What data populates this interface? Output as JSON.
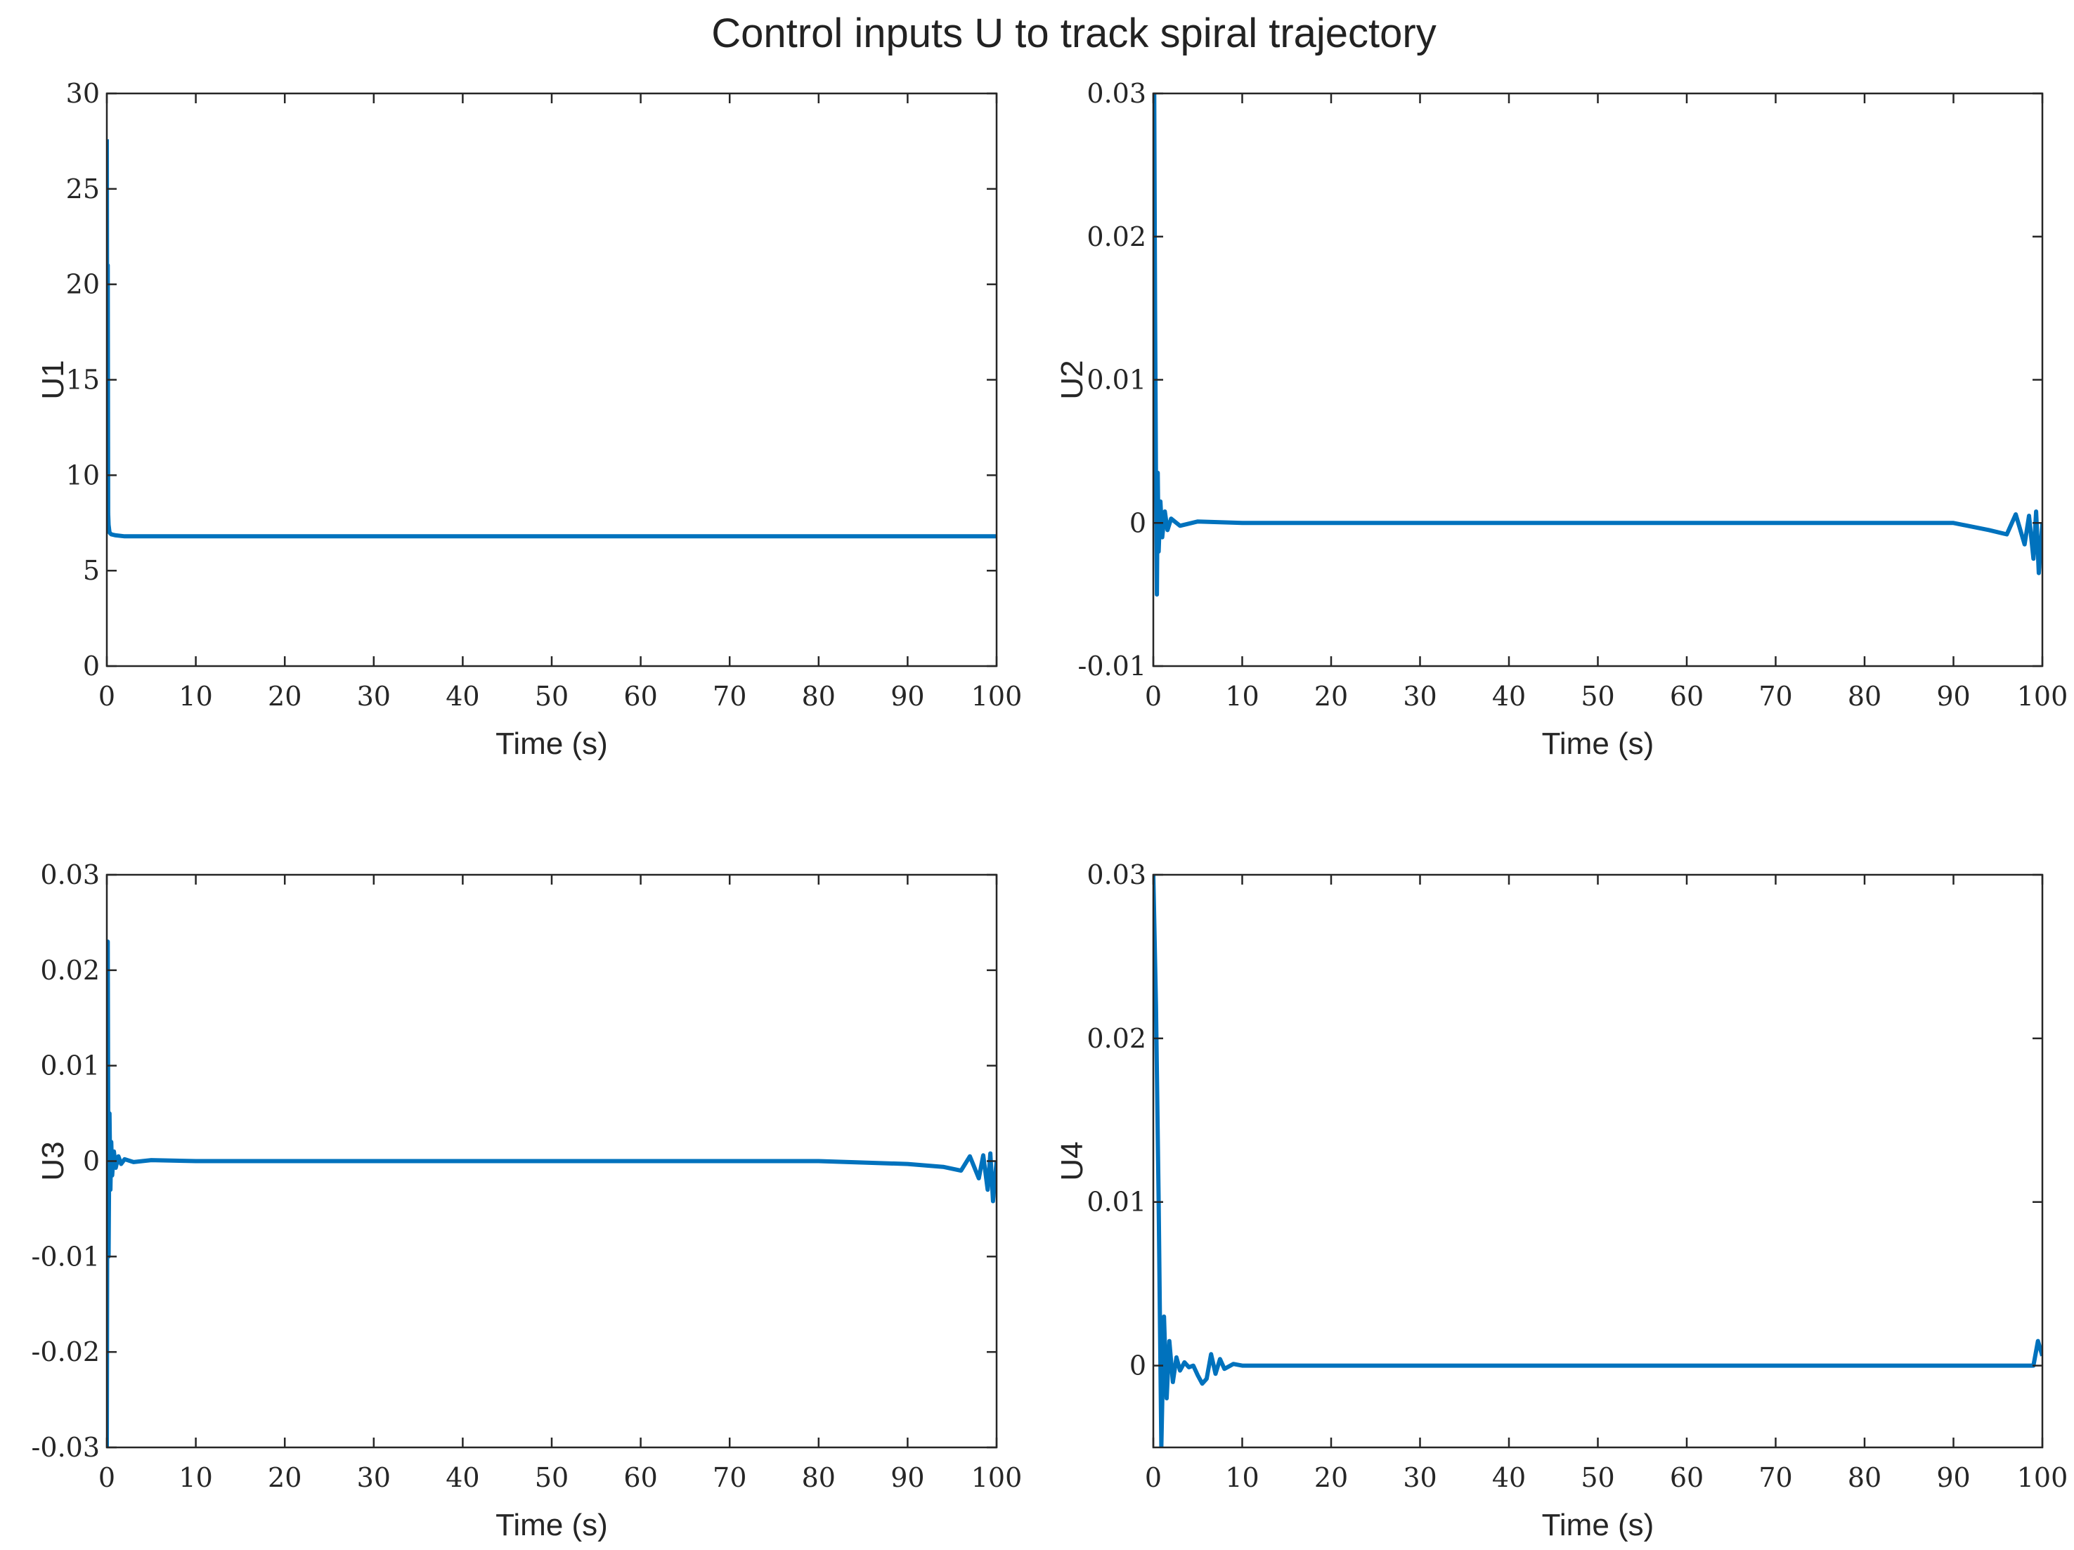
{
  "title": "Control inputs U to track spiral trajectory",
  "colors": {
    "line": "#0072BD",
    "axis": "#262626"
  },
  "chart_data": [
    {
      "type": "line",
      "xlabel": "Time (s)",
      "ylabel": "U1",
      "xlim": [
        0,
        100
      ],
      "ylim": [
        0,
        30
      ],
      "xticks": [
        0,
        10,
        20,
        30,
        40,
        50,
        60,
        70,
        80,
        90,
        100
      ],
      "xtick_labels": [
        "0",
        "10",
        "20",
        "30",
        "40",
        "50",
        "60",
        "70",
        "80",
        "90",
        "100"
      ],
      "yticks": [
        0,
        5,
        10,
        15,
        20,
        25,
        30
      ],
      "ytick_labels": [
        "0",
        "5",
        "10",
        "15",
        "20",
        "25",
        "30"
      ],
      "grid": false,
      "x": [
        0,
        0.05,
        0.1,
        0.15,
        0.2,
        0.3,
        0.5,
        1,
        2,
        5,
        10,
        20,
        30,
        40,
        50,
        60,
        70,
        80,
        90,
        95,
        100
      ],
      "y": [
        27.6,
        14.0,
        21.0,
        8.0,
        7.4,
        7.0,
        6.9,
        6.85,
        6.8,
        6.8,
        6.8,
        6.8,
        6.8,
        6.8,
        6.8,
        6.8,
        6.8,
        6.8,
        6.8,
        6.8,
        6.8
      ]
    },
    {
      "type": "line",
      "xlabel": "Time (s)",
      "ylabel": "U2",
      "xlim": [
        0,
        100
      ],
      "ylim": [
        -0.01,
        0.03
      ],
      "xticks": [
        0,
        10,
        20,
        30,
        40,
        50,
        60,
        70,
        80,
        90,
        100
      ],
      "xtick_labels": [
        "0",
        "10",
        "20",
        "30",
        "40",
        "50",
        "60",
        "70",
        "80",
        "90",
        "100"
      ],
      "yticks": [
        -0.01,
        0,
        0.01,
        0.02,
        0.03
      ],
      "ytick_labels": [
        "-0.01",
        "0",
        "0.01",
        "0.02",
        "0.03"
      ],
      "grid": false,
      "x": [
        0,
        0.1,
        0.2,
        0.3,
        0.4,
        0.5,
        0.6,
        0.8,
        1.0,
        1.3,
        1.6,
        2,
        3,
        5,
        10,
        20,
        30,
        40,
        50,
        60,
        70,
        80,
        90,
        94,
        96,
        97,
        98,
        98.5,
        99,
        99.3,
        99.6,
        100
      ],
      "y": [
        0.018,
        0.03,
        0.015,
        0.003,
        -0.005,
        0.0035,
        -0.002,
        0.0015,
        -0.001,
        0.0008,
        -0.0005,
        0.0003,
        -0.0002,
        0.0001,
        0,
        0,
        0,
        0,
        0,
        0,
        0,
        0,
        0,
        -0.0005,
        -0.0008,
        0.0006,
        -0.0015,
        0.0005,
        -0.0025,
        0.0008,
        -0.0035,
        0
      ]
    },
    {
      "type": "line",
      "xlabel": "Time (s)",
      "ylabel": "U3",
      "xlim": [
        0,
        100
      ],
      "ylim": [
        -0.03,
        0.03
      ],
      "xticks": [
        0,
        10,
        20,
        30,
        40,
        50,
        60,
        70,
        80,
        90,
        100
      ],
      "xtick_labels": [
        "0",
        "10",
        "20",
        "30",
        "40",
        "50",
        "60",
        "70",
        "80",
        "90",
        "100"
      ],
      "yticks": [
        -0.03,
        -0.02,
        -0.01,
        0,
        0.01,
        0.02,
        0.03
      ],
      "ytick_labels": [
        "-0.03",
        "-0.02",
        "-0.01",
        "0",
        "0.01",
        "0.02",
        "0.03"
      ],
      "grid": false,
      "x": [
        0,
        0.1,
        0.2,
        0.3,
        0.4,
        0.5,
        0.6,
        0.8,
        1.0,
        1.3,
        1.6,
        2,
        3,
        5,
        10,
        20,
        30,
        40,
        50,
        60,
        70,
        80,
        90,
        94,
        96,
        97,
        98,
        98.5,
        99,
        99.3,
        99.6,
        100
      ],
      "y": [
        -0.03,
        0.023,
        -0.01,
        0.005,
        -0.003,
        0.002,
        -0.0015,
        0.001,
        -0.0007,
        0.0005,
        -0.0003,
        0.0002,
        -0.0001,
        0.0001,
        0,
        0,
        0,
        0,
        0,
        0,
        0,
        0,
        -0.0003,
        -0.0006,
        -0.001,
        0.0005,
        -0.0018,
        0.0006,
        -0.003,
        0.0008,
        -0.0042,
        0
      ]
    },
    {
      "type": "line",
      "xlabel": "Time (s)",
      "ylabel": "U4",
      "xlim": [
        0,
        100
      ],
      "ylim": [
        -0.005,
        0.03
      ],
      "xticks": [
        0,
        10,
        20,
        30,
        40,
        50,
        60,
        70,
        80,
        90,
        100
      ],
      "xtick_labels": [
        "0",
        "10",
        "20",
        "30",
        "40",
        "50",
        "60",
        "70",
        "80",
        "90",
        "100"
      ],
      "yticks": [
        0,
        0.01,
        0.02,
        0.03
      ],
      "ytick_labels": [
        "0",
        "0.01",
        "0.02",
        "0.03"
      ],
      "grid": false,
      "x": [
        0,
        0.3,
        0.6,
        0.9,
        1.2,
        1.5,
        1.8,
        2.2,
        2.6,
        3.0,
        3.5,
        4.0,
        4.5,
        5.0,
        5.5,
        6.0,
        6.5,
        7.0,
        7.5,
        8.0,
        9.0,
        10.0,
        20,
        40,
        60,
        80,
        99,
        99.5,
        100
      ],
      "y": [
        0.03,
        0.022,
        0.01,
        -0.005,
        0.003,
        -0.002,
        0.0015,
        -0.001,
        0.0005,
        -0.0003,
        0.0002,
        -0.0001,
        0.0,
        -0.0006,
        -0.0011,
        -0.0008,
        0.0007,
        -0.0005,
        0.0004,
        -0.0002,
        0.0001,
        0,
        0,
        0,
        0,
        0,
        0,
        0.0015,
        0.0006
      ]
    }
  ]
}
